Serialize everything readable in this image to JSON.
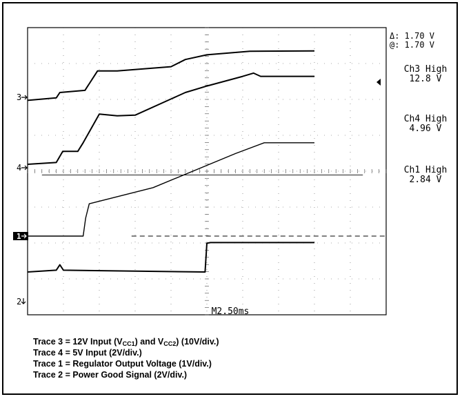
{
  "chart_data": {
    "type": "line",
    "timebase": "M2.50ms",
    "cursor": {
      "delta": "Δ: 1.70 V",
      "at": "@: 1.70 V"
    },
    "channel_readouts": [
      {
        "name": "Ch3 High",
        "value": "12.8 V"
      },
      {
        "name": "Ch4 High",
        "value": "4.96 V"
      },
      {
        "name": "Ch1 High",
        "value": "2.84 V"
      }
    ],
    "marker_labels": {
      "ch3": "3",
      "ch4": "4",
      "ch1": "1",
      "ch2": "2"
    },
    "grid": true,
    "divisions": {
      "x": 10,
      "y": 8
    },
    "traces": [
      {
        "id": "trace3",
        "points": [
          [
            0,
            3.78
          ],
          [
            0.8,
            3.85
          ],
          [
            0.9,
            4.0
          ],
          [
            1.6,
            4.06
          ],
          [
            1.95,
            4.6
          ],
          [
            2.5,
            4.6
          ],
          [
            4.0,
            4.72
          ],
          [
            4.4,
            4.92
          ],
          [
            5.0,
            5.05
          ],
          [
            6.2,
            5.15
          ],
          [
            8.0,
            5.16
          ]
        ]
      },
      {
        "id": "trace4",
        "points": [
          [
            0,
            2.0
          ],
          [
            0.8,
            2.05
          ],
          [
            0.98,
            2.36
          ],
          [
            1.4,
            2.36
          ],
          [
            1.55,
            2.6
          ],
          [
            2.0,
            3.4
          ],
          [
            2.5,
            3.35
          ],
          [
            3.0,
            3.37
          ],
          [
            4.0,
            3.82
          ],
          [
            4.4,
            4.0
          ],
          [
            5.0,
            4.18
          ],
          [
            6.0,
            4.45
          ],
          [
            6.3,
            4.54
          ],
          [
            6.5,
            4.45
          ],
          [
            8.0,
            4.45
          ]
        ]
      },
      {
        "id": "trace1",
        "points": [
          [
            0,
            0
          ],
          [
            1.55,
            0
          ],
          [
            1.62,
            0.5
          ],
          [
            1.72,
            0.9
          ],
          [
            3.5,
            1.35
          ],
          [
            5.8,
            2.3
          ],
          [
            6.6,
            2.6
          ],
          [
            8.0,
            2.6
          ]
        ]
      },
      {
        "id": "trace2",
        "points": [
          [
            0,
            -1.0
          ],
          [
            0.8,
            -0.95
          ],
          [
            0.9,
            -0.8
          ],
          [
            1.0,
            -0.95
          ],
          [
            4.95,
            -1.0
          ],
          [
            5.0,
            -0.2
          ],
          [
            5.1,
            -0.18
          ],
          [
            8.0,
            -0.18
          ]
        ]
      }
    ],
    "cursor_levels": [
      1.7
    ],
    "ch1_offset_level": 0
  },
  "captions": {
    "line1": "Trace 3 = 12V Input (V",
    "line1_sub1": "CC1",
    "line1_mid": ") and V",
    "line1_sub2": "CC2",
    "line1_end": ") (10V/div.)",
    "line2": "Trace 4 = 5V Input (2V/div.)",
    "line3": "Trace 1 = Regulator Output Voltage (1V/div.)",
    "line4": "Trace 2 = Power Good Signal (2V/div.)"
  }
}
